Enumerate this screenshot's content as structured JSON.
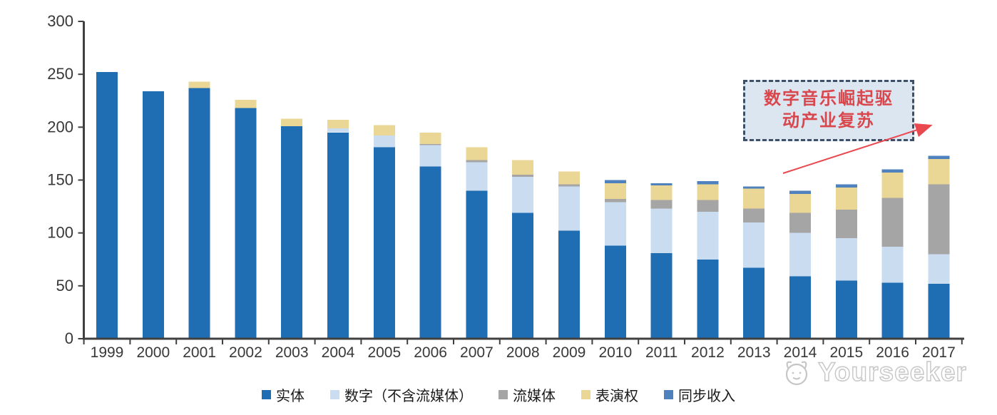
{
  "chart_data": {
    "type": "bar",
    "subtype": "stacked",
    "categories": [
      "1999",
      "2000",
      "2001",
      "2002",
      "2003",
      "2004",
      "2005",
      "2006",
      "2007",
      "2008",
      "2009",
      "2010",
      "2011",
      "2012",
      "2013",
      "2014",
      "2015",
      "2016",
      "2017"
    ],
    "series": [
      {
        "name": "实体",
        "color": "#1f6db2",
        "values": [
          252,
          234,
          237,
          218,
          201,
          195,
          181,
          163,
          140,
          119,
          102,
          88,
          81,
          75,
          67,
          59,
          55,
          53,
          52
        ]
      },
      {
        "name": "数字（不含流媒体）",
        "color": "#c9dcf0",
        "values": [
          0,
          0,
          0,
          0,
          0,
          4,
          11,
          20,
          27,
          34,
          42,
          41,
          42,
          45,
          43,
          41,
          40,
          34,
          28
        ]
      },
      {
        "name": "流媒体",
        "color": "#a5a5a5",
        "values": [
          0,
          0,
          0,
          0,
          0,
          0,
          0,
          1,
          2,
          2,
          2,
          3,
          8,
          11,
          13,
          19,
          27,
          46,
          66
        ]
      },
      {
        "name": "表演权",
        "color": "#ebd795",
        "values": [
          0,
          0,
          6,
          8,
          7,
          8,
          10,
          11,
          12,
          14,
          12,
          15,
          14,
          15,
          19,
          18,
          21,
          24,
          24
        ]
      },
      {
        "name": "同步收入",
        "color": "#4e81bd",
        "values": [
          0,
          0,
          0,
          0,
          0,
          0,
          0,
          0,
          0,
          0,
          0,
          3,
          2,
          3,
          2,
          3,
          3,
          3,
          3
        ]
      }
    ],
    "title": "",
    "xlabel": "",
    "ylabel": "",
    "ylim": [
      0,
      300
    ],
    "yticks": [
      0,
      50,
      100,
      150,
      200,
      250,
      300
    ],
    "grid": false,
    "legend_position": "bottom"
  },
  "annotation": {
    "line1": "数字音乐崛起驱",
    "line2": "动产业复苏"
  },
  "watermark": {
    "text": "Yourseeker"
  },
  "colors": {
    "axis": "#404040",
    "tick_label": "#383838",
    "annotation_fill": "#dce6f1",
    "annotation_border": "#3d5068",
    "annotation_text": "#d9474d",
    "arrow": "#e9484e",
    "watermark": "#c6c6c6"
  }
}
